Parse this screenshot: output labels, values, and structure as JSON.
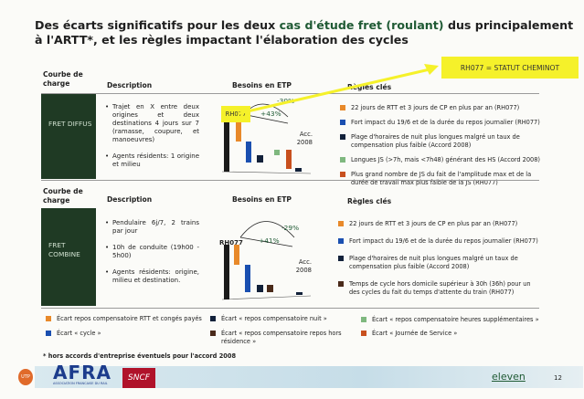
{
  "title": {
    "part1": "Des écarts significatifs pour les deux ",
    "highlight": "cas d'étude fret (roulant)",
    "part2": " dus principalement à l'ARTT*, et les règles impactant l'élaboration des cycles"
  },
  "callout": "RH077 = STATUT CHEMINOT",
  "headers": {
    "courbe": "Courbe de charge",
    "description": "Description",
    "besoins": "Besoins en ETP",
    "regles": "Règles clés"
  },
  "sections": [
    {
      "label": "FRET DIFFUS",
      "description": [
        "Trajet en X entre deux origines et deux destinations 4 jours sur 7 (ramasse, coupure, et manoeuvres)",
        "Agents résidents: 1 origine et milieu"
      ],
      "chart": {
        "start": "RH077",
        "end": "Acc. 2008",
        "up": "+43%",
        "down": "-30%"
      },
      "rules": [
        {
          "color": "#e8892a",
          "text": "22 jours de RTT et 3 jours de CP en plus par an (RH077)"
        },
        {
          "color": "#1a4fb0",
          "text": "Fort impact du 19/6 et de la durée du repos journalier (RH077)"
        },
        {
          "color": "#12213a",
          "text": "Plage d'horaires de nuit plus longues malgré un taux de compensation plus faible (Accord 2008)"
        },
        {
          "color": "#7fb87f",
          "text": "Longues JS (>7h, mais <7h48) générant des HS (Accord 2008)"
        },
        {
          "color": "#c8501e",
          "text": "Plus grand nombre de JS du fait de l'amplitude max et de la durée de travail max plus faible de la JS (RH077)"
        }
      ]
    },
    {
      "label": "FRET COMBINE",
      "description": [
        "Pendulaire 6j/7, 2 trains par jour",
        "10h de conduite (19h00 - 5h00)",
        "Agents résidents: origine, milieu et destination."
      ],
      "chart": {
        "start": "RH077",
        "end": "Acc. 2008",
        "up": "+41%",
        "down": "-29%"
      },
      "rules": [
        {
          "color": "#e8892a",
          "text": "22 jours de RTT et 3 jours de CP en plus par an (RH077)"
        },
        {
          "color": "#1a4fb0",
          "text": "Fort impact du 19/6 et de la durée du repos journalier (RH077)"
        },
        {
          "color": "#12213a",
          "text": "Plage d'horaires de nuit plus longues malgré un taux de compensation plus faible (Accord 2008)"
        },
        {
          "color": "#4a2a1a",
          "text": "Temps de cycle hors domicile supérieur à 30h (36h) pour un des cycles du fait du temps d'attente du train (RH077)"
        }
      ]
    }
  ],
  "legend": [
    {
      "color": "#e8892a",
      "text": "Écart repos compensatoire RTT et congés payés"
    },
    {
      "color": "#12213a",
      "text": "Écart « repos compensatoire nuit »"
    },
    {
      "color": "#7fb87f",
      "text": "Écart « repos compensatoire heures supplémentaires »"
    },
    {
      "color": "#1a4fb0",
      "text": "Écart « cycle »"
    },
    {
      "color": "#4a2a1a",
      "text": "Écart « repos compensatoire repos hors résidence »"
    },
    {
      "color": "#c8501e",
      "text": "Écart « Journée de Service »"
    }
  ],
  "footnote": "* hors accords d'entreprise éventuels pour l'accord 2008",
  "footer": {
    "logos": [
      "UTP",
      "AFRA",
      "ASSOCIATION FRANCAISE DU RAIL",
      "SNCF",
      "eleven"
    ],
    "page": "12"
  }
}
